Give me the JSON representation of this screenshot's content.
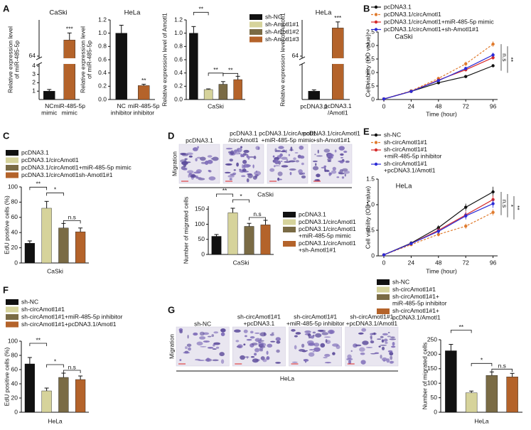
{
  "chart_data": [
    {
      "panel": "A",
      "type": "bar",
      "title": "CaSki",
      "y_label": "Relative expression level\nof miR-485-5p",
      "categories": [
        "NC\nmimic",
        "miR-485-5p\nmimic"
      ],
      "values": [
        1,
        80
      ],
      "errors": [
        0.2,
        7
      ],
      "colors": [
        "#111111",
        "#b4632a"
      ],
      "ylim": [
        0,
        100
      ],
      "ybreak": [
        4,
        64
      ],
      "yticks": [
        1,
        2,
        3,
        4,
        64
      ],
      "annotations": [
        "***"
      ]
    },
    {
      "type": "bar",
      "title": "HeLa",
      "y_label": "Relative expression level\nof miR-485-5p",
      "categories": [
        "NC\ninhibitor",
        "miR-485-5p\ninhibitor"
      ],
      "values": [
        1,
        0.21
      ],
      "errors": [
        0.12,
        0.02
      ],
      "colors": [
        "#111111",
        "#b4632a"
      ],
      "ylim": [
        0,
        1.2
      ],
      "yticks": [
        {
          "value": 0,
          "label": "0.0"
        },
        0.2,
        0.4,
        0.6,
        0.8,
        {
          "value": 1,
          "label": "1.0"
        },
        1.2
      ],
      "annotations": [
        "**"
      ]
    },
    {
      "type": "bar",
      "y_label": "Relative expression level of Amotl1",
      "categories": [
        "CaSki"
      ],
      "series": [
        {
          "name": "sh-NC",
          "color": "#111111",
          "values": [
            1
          ],
          "errors": [
            0.1
          ]
        },
        {
          "name": "sh-Amotl1#1",
          "color": "#d6d39b",
          "values": [
            0.15
          ],
          "errors": [
            0.01
          ]
        },
        {
          "name": "sh-Amotl1#2",
          "color": "#7a6b45",
          "values": [
            0.23
          ],
          "errors": [
            0.04
          ]
        },
        {
          "name": "sh-Amotl1#3",
          "color": "#b4632a",
          "values": [
            0.3
          ],
          "errors": [
            0.05
          ]
        }
      ],
      "ylim": [
        0,
        1.2
      ],
      "yticks": [
        {
          "value": 0,
          "label": "0.0"
        },
        0.2,
        0.4,
        0.6,
        0.8,
        {
          "value": 1,
          "label": "1.0"
        },
        1.2
      ],
      "annotations": [
        "**",
        "**",
        "**"
      ]
    },
    {
      "type": "bar",
      "title": "HeLa",
      "y_label": "Relative expression level of Amotl1",
      "categories": [
        "pcDNA3.1",
        "pcDNA3.1\n/Amotl1"
      ],
      "values": [
        1,
        92
      ],
      "errors": [
        0.15,
        6
      ],
      "colors": [
        "#111111",
        "#b4632a"
      ],
      "ylim": [
        0,
        100
      ],
      "ybreak": [
        4,
        64
      ],
      "yticks": [
        64
      ],
      "annotations": [
        "***"
      ]
    },
    {
      "panel": "B",
      "type": "line",
      "title": "CaSki",
      "y_label": "Cell viability (OD value)",
      "x_label": "Time (hour)",
      "x": [
        0,
        24,
        48,
        72,
        96
      ],
      "xlim": [
        -5,
        100
      ],
      "xticks": [
        0,
        24,
        48,
        72,
        96
      ],
      "ylim": [
        0,
        2.5
      ],
      "yticks": [
        0,
        0.5,
        {
          "value": 1,
          "label": "1.0"
        },
        1.5,
        {
          "value": 2,
          "label": "2.0"
        },
        2.5
      ],
      "series": [
        {
          "name": "pcDNA3.1",
          "color": "#111111",
          "values": [
            0.02,
            0.3,
            0.62,
            0.85,
            1.25
          ],
          "errors": [
            0.01,
            0.02,
            0.03,
            0.04,
            0.05
          ]
        },
        {
          "name": "pcDNA3.1/circAmotl1",
          "color": "#e07b2e",
          "dash": true,
          "values": [
            0.02,
            0.32,
            0.78,
            1.32,
            2.05
          ],
          "errors": [
            0.01,
            0.02,
            0.05,
            0.08,
            0.1
          ]
        },
        {
          "name": "pcDNA3.1/circAmotl1+miR-485-5p mimic",
          "color": "#d62b2b",
          "values": [
            0.02,
            0.3,
            0.72,
            1.1,
            1.55
          ],
          "errors": [
            0.01,
            0.02,
            0.04,
            0.06,
            0.08
          ]
        },
        {
          "name": "pcDNA3.1/circAmotl1+sh-Amotl1#1",
          "color": "#2b2bd6",
          "values": [
            0.02,
            0.3,
            0.7,
            1.15,
            1.65
          ],
          "errors": [
            0.01,
            0.02,
            0.04,
            0.06,
            0.08
          ]
        }
      ],
      "annotations": [
        "n.s",
        "**"
      ]
    },
    {
      "panel": "C",
      "type": "bar",
      "y_label": "EdU positive cells (%)",
      "categories": [
        "CaSki"
      ],
      "series": [
        {
          "name": "pcDNA3.1",
          "color": "#111111",
          "values": [
            26
          ],
          "errors": [
            3
          ]
        },
        {
          "name": "pcDNA3.1/circAmotl1",
          "color": "#d6d39b",
          "values": [
            72
          ],
          "errors": [
            9
          ]
        },
        {
          "name": "pcDNA3.1/circAmotl1+miR-485-5p mimic",
          "color": "#7a6b45",
          "values": [
            46
          ],
          "errors": [
            6
          ]
        },
        {
          "name": "pcDNA3.1/circAmotl1sh-Amotl1#1",
          "color": "#b4632a",
          "values": [
            41
          ],
          "errors": [
            5
          ]
        }
      ],
      "ylim": [
        0,
        100
      ],
      "yticks": [
        0,
        20,
        40,
        60,
        80,
        100
      ],
      "annotations": [
        "**",
        "*",
        "n.s"
      ]
    },
    {
      "panel": "D",
      "type": "bar",
      "y_label": "Number of migrated cells",
      "categories": [
        "CaSki"
      ],
      "images": {
        "labels": [
          "pcDNA3.1",
          "pcDNA3.1\n/circAmotl1",
          "pcDNA3.1/circAmotl1\n+miR-485-5p mimic",
          "pcDNA3.1/circAmotl1\n+sh-Amotl1#1"
        ],
        "row_label": "Migration",
        "group_label": "CaSki"
      },
      "series": [
        {
          "name": "pcDNA3.1",
          "color": "#111111",
          "values": [
            60
          ],
          "errors": [
            6
          ]
        },
        {
          "name": "pcDNA3.1/circAmotl1",
          "color": "#d6d39b",
          "values": [
            138
          ],
          "errors": [
            15
          ]
        },
        {
          "name": "pcDNA3.1/circAmotl1\n+miR-485-5p mimic",
          "color": "#7a6b45",
          "values": [
            93
          ],
          "errors": [
            10
          ]
        },
        {
          "name": "pcDNA3.1/circAmotl1\n+sh-Amotl1#1",
          "color": "#b4632a",
          "values": [
            98
          ],
          "errors": [
            15
          ]
        }
      ],
      "ylim": [
        0,
        160
      ],
      "yticks": [
        0,
        50,
        100,
        150
      ],
      "annotations": [
        "**",
        "*",
        "n.s"
      ]
    },
    {
      "panel": "E",
      "type": "line",
      "title": "HeLa",
      "y_label": "Cell viability (OD value)",
      "x_label": "Time (hour)",
      "x": [
        0,
        24,
        48,
        72,
        96
      ],
      "xlim": [
        -5,
        100
      ],
      "xticks": [
        0,
        24,
        48,
        72,
        96
      ],
      "ylim": [
        0,
        1.5
      ],
      "yticks": [
        0,
        0.5,
        {
          "value": 1,
          "label": "1.0"
        },
        1.5
      ],
      "series": [
        {
          "name": "sh-NC",
          "color": "#111111",
          "values": [
            0.02,
            0.25,
            0.55,
            0.95,
            1.25
          ],
          "errors": [
            0.01,
            0.03,
            0.05,
            0.07,
            0.1
          ]
        },
        {
          "name": "sh-circAmotl1#1",
          "color": "#e07b2e",
          "dash": true,
          "values": [
            0.02,
            0.22,
            0.42,
            0.58,
            0.85
          ],
          "errors": [
            0.01,
            0.02,
            0.04,
            0.05,
            0.06
          ]
        },
        {
          "name": "sh-circAmotl1#1\n+miR-485-5p inhibitor",
          "color": "#d62b2b",
          "values": [
            0.02,
            0.24,
            0.5,
            0.8,
            1.1
          ],
          "errors": [
            0.01,
            0.03,
            0.05,
            0.07,
            0.08
          ]
        },
        {
          "name": "sh-circAmotl1#1\n+pcDNA3.1/Amotl1",
          "color": "#2b2bd6",
          "values": [
            0.02,
            0.24,
            0.48,
            0.78,
            1.02
          ],
          "errors": [
            0.01,
            0.03,
            0.05,
            0.07,
            0.08
          ]
        }
      ],
      "annotations": [
        "n.s",
        "*",
        "**"
      ]
    },
    {
      "panel": "F",
      "type": "bar",
      "y_label": "EdU positive cells (%)",
      "categories": [
        "HeLa"
      ],
      "series": [
        {
          "name": "sh-NC",
          "color": "#111111",
          "values": [
            68
          ],
          "errors": [
            9
          ]
        },
        {
          "name": "sh-circAmotl1#1",
          "color": "#d6d39b",
          "values": [
            30
          ],
          "errors": [
            4
          ]
        },
        {
          "name": "sh-circAmotl1#1+miR-485-5p inhibitor",
          "color": "#7a6b45",
          "values": [
            49
          ],
          "errors": [
            6
          ]
        },
        {
          "name": "sh-circAmotl1#1+pcDNA3.1/Amotl1",
          "color": "#b4632a",
          "values": [
            46
          ],
          "errors": [
            5
          ]
        }
      ],
      "ylim": [
        0,
        100
      ],
      "yticks": [
        0,
        20,
        40,
        60,
        80,
        100
      ],
      "annotations": [
        "**",
        "*",
        "n.s"
      ]
    },
    {
      "panel": "G",
      "type": "bar",
      "y_label": "Number of migrated cells",
      "categories": [
        "HeLa"
      ],
      "images": {
        "labels": [
          "sh-NC",
          "sh-circAmotl1#1\n+pcDNA3.1",
          "sh-circAmotl1#1\n+miR-485-5p inhibitor",
          "sh-circAmotl1#1\n+pcDNA3.1/Amotl1"
        ],
        "row_label": "Migration",
        "group_label": "HeLa"
      },
      "series": [
        {
          "name": "sh-NC",
          "color": "#111111",
          "values": [
            212
          ],
          "errors": [
            22
          ]
        },
        {
          "name": "sh-circAmotl1#1",
          "color": "#d6d39b",
          "values": [
            67
          ],
          "errors": [
            6
          ]
        },
        {
          "name": "sh-circAmotl1#1+\nmiR-485-5p inhibitor",
          "color": "#7a6b45",
          "values": [
            127
          ],
          "errors": [
            12
          ]
        },
        {
          "name": "sh-circAmotl1#1+\npcDNA3.1/Amotl1",
          "color": "#b4632a",
          "values": [
            122
          ],
          "errors": [
            12
          ]
        }
      ],
      "ylim": [
        0,
        250
      ],
      "yticks": [
        0,
        50,
        100,
        150,
        200,
        250
      ],
      "annotations": [
        "**",
        "*",
        "n.s"
      ]
    }
  ]
}
